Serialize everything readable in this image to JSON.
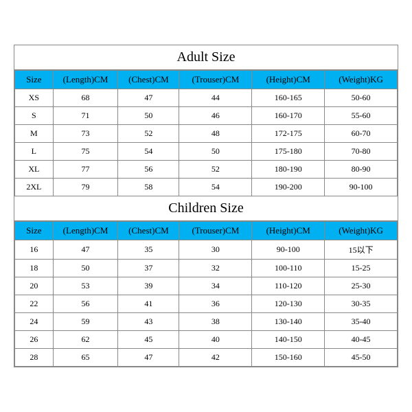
{
  "adult": {
    "title": "Adult Size",
    "columns": [
      "Size",
      "(Length)CM",
      "(Chest)CM",
      "(Trouser)CM",
      "(Height)CM",
      "(Weight)KG"
    ],
    "rows": [
      [
        "XS",
        "68",
        "47",
        "44",
        "160-165",
        "50-60"
      ],
      [
        "S",
        "71",
        "50",
        "46",
        "160-170",
        "55-60"
      ],
      [
        "M",
        "73",
        "52",
        "48",
        "172-175",
        "60-70"
      ],
      [
        "L",
        "75",
        "54",
        "50",
        "175-180",
        "70-80"
      ],
      [
        "XL",
        "77",
        "56",
        "52",
        "180-190",
        "80-90"
      ],
      [
        "2XL",
        "79",
        "58",
        "54",
        "190-200",
        "90-100"
      ]
    ]
  },
  "children": {
    "title": "Children Size",
    "columns": [
      "Size",
      "(Length)CM",
      "(Chest)CM",
      "(Trouser)CM",
      "(Height)CM",
      "(Weight)KG"
    ],
    "rows": [
      [
        "16",
        "47",
        "35",
        "30",
        "90-100",
        "15以下"
      ],
      [
        "18",
        "50",
        "37",
        "32",
        "100-110",
        "15-25"
      ],
      [
        "20",
        "53",
        "39",
        "34",
        "110-120",
        "25-30"
      ],
      [
        "22",
        "56",
        "41",
        "36",
        "120-130",
        "30-35"
      ],
      [
        "24",
        "59",
        "43",
        "38",
        "130-140",
        "35-40"
      ],
      [
        "26",
        "62",
        "45",
        "40",
        "140-150",
        "40-45"
      ],
      [
        "28",
        "65",
        "47",
        "42",
        "150-160",
        "45-50"
      ]
    ]
  },
  "style": {
    "header_bg": "#00b0f0",
    "border_color": "#888888",
    "bg": "#ffffff",
    "title_fontsize": 20,
    "header_fontsize": 13,
    "cell_fontsize": 12
  }
}
